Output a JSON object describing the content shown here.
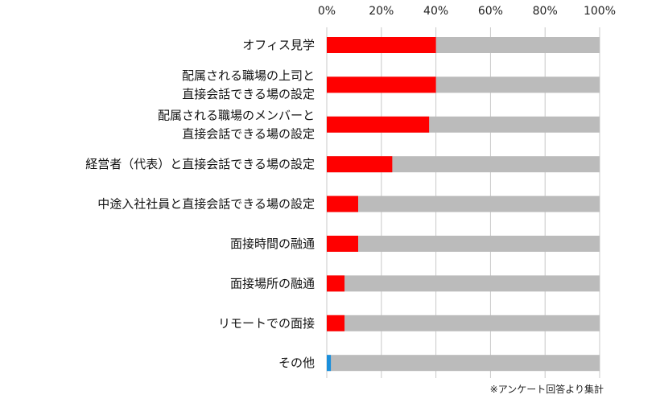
{
  "chart_data": {
    "type": "bar",
    "orientation": "horizontal",
    "stacked_to_100": true,
    "x_ticks": [
      "0%",
      "20%",
      "40%",
      "60%",
      "80%",
      "100%"
    ],
    "xlim": [
      0,
      100
    ],
    "grid": true,
    "categories": [
      [
        "オフィス見学"
      ],
      [
        "配属される職場の上司と",
        "直接会話できる場の設定"
      ],
      [
        "配属される職場のメンバーと",
        "直接会話できる場の設定"
      ],
      [
        "経営者（代表）と直接会話できる場の設定"
      ],
      [
        "中途入社社員と直接会話できる場の設定"
      ],
      [
        "面接時間の融通"
      ],
      [
        "面接場所の融通"
      ],
      [
        "リモートでの面接"
      ],
      [
        "その他"
      ]
    ],
    "values": [
      40,
      40,
      37.5,
      24,
      11.5,
      11.5,
      6.5,
      6.5,
      1.5
    ],
    "bar_colors": [
      "#ff0000",
      "#ff0000",
      "#ff0000",
      "#ff0000",
      "#ff0000",
      "#ff0000",
      "#ff0000",
      "#ff0000",
      "#1a8fdc"
    ],
    "remainder_color": "#bbbbbb",
    "gridline_color": "#c8c8c8",
    "note": "※アンケート回答より集計"
  }
}
